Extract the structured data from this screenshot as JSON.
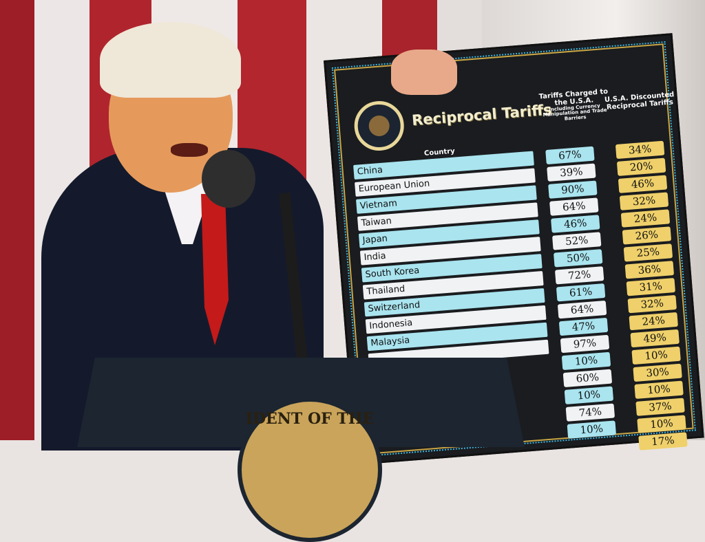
{
  "board": {
    "title": "Reciprocal Tariffs",
    "col_country": "Country",
    "col_charged": "Tariffs Charged to the U.S.A.",
    "col_charged_note": "Including Currency Manipulation and Trade Barriers",
    "col_discounted": "U.S.A. Discounted Reciprocal Tariffs",
    "seal_text": "SEAL OF THE PRESIDENT OF THE UNITED STATES",
    "rows": [
      {
        "country": "China",
        "charged": "67%",
        "discounted": "34%"
      },
      {
        "country": "European Union",
        "charged": "39%",
        "discounted": "20%"
      },
      {
        "country": "Vietnam",
        "charged": "90%",
        "discounted": "46%"
      },
      {
        "country": "Taiwan",
        "charged": "64%",
        "discounted": "32%"
      },
      {
        "country": "Japan",
        "charged": "46%",
        "discounted": "24%"
      },
      {
        "country": "India",
        "charged": "52%",
        "discounted": "26%"
      },
      {
        "country": "South Korea",
        "charged": "50%",
        "discounted": "25%"
      },
      {
        "country": "Thailand",
        "charged": "72%",
        "discounted": "36%"
      },
      {
        "country": "Switzerland",
        "charged": "61%",
        "discounted": "31%"
      },
      {
        "country": "Indonesia",
        "charged": "64%",
        "discounted": "32%"
      },
      {
        "country": "Malaysia",
        "charged": "47%",
        "discounted": "24%"
      },
      {
        "country": "",
        "charged": "97%",
        "discounted": "49%"
      },
      {
        "country": "",
        "charged": "10%",
        "discounted": "10%"
      },
      {
        "country": "",
        "charged": "60%",
        "discounted": "30%"
      },
      {
        "country": "",
        "charged": "10%",
        "discounted": "10%"
      },
      {
        "country": "",
        "charged": "74%",
        "discounted": "37%"
      },
      {
        "country": "",
        "charged": "10%",
        "discounted": "10%"
      },
      {
        "country": "",
        "charged": "",
        "discounted": "17%"
      }
    ]
  },
  "podium": {
    "seal_text": "IDENT OF THE"
  },
  "colors": {
    "board": "#1a1c1f",
    "teal": "#a9e4ef",
    "white": "#f1f2f4",
    "gold": "#efd06a",
    "flag_red": "#b0252d"
  }
}
